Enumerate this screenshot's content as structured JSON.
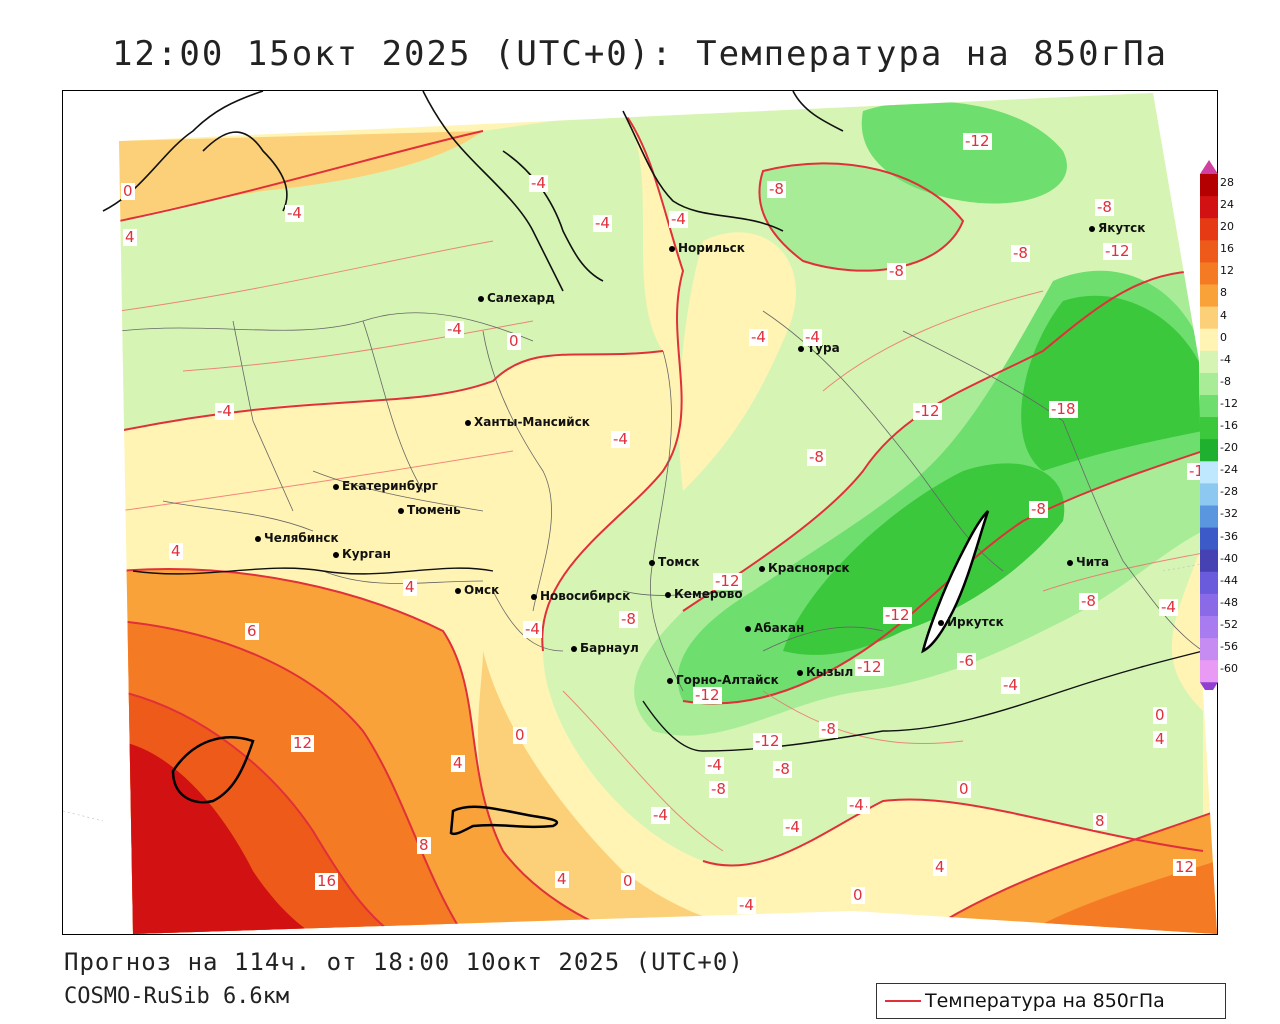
{
  "title": "12:00 15окт 2025 (UTC+0): Температура на 850гПа",
  "forecast_line": "Прогноз на 114ч. от 18:00 10окт 2025 (UTC+0)",
  "model_line": "COSMO-RuSib 6.6км",
  "legend": {
    "label": "Температура на 850гПа",
    "line_color": "#e0303a"
  },
  "colorbar": {
    "ticks": [
      "28",
      "24",
      "20",
      "16",
      "12",
      "8",
      "4",
      "0",
      "-4",
      "-8",
      "-12",
      "-16",
      "-20",
      "-24",
      "-28",
      "-32",
      "-36",
      "-40",
      "-44",
      "-48",
      "-52",
      "-56",
      "-60"
    ],
    "colors": [
      "#b40000",
      "#d21212",
      "#e63a14",
      "#ee5a1a",
      "#f57a24",
      "#f9a23a",
      "#fcd078",
      "#fff4b4",
      "#d6f5b4",
      "#a8ec98",
      "#6ede6e",
      "#3cc83c",
      "#20b030",
      "#bfe8ff",
      "#8cc8f0",
      "#5a96e0",
      "#3c5ac8",
      "#4642b4",
      "#6a5adc",
      "#8a6ae6",
      "#a87cf0",
      "#c68cf2",
      "#e89af4"
    ],
    "arrow_top_color": "#d040a0",
    "arrow_bottom_color": "#9040d0"
  },
  "cities": [
    {
      "name": "Норильск"
    },
    {
      "name": "Салехард"
    },
    {
      "name": "Тура"
    },
    {
      "name": "Якутск"
    },
    {
      "name": "Ханты-Мансийск"
    },
    {
      "name": "Екатеринбург"
    },
    {
      "name": "Тюмень"
    },
    {
      "name": "Челябинск"
    },
    {
      "name": "Курган"
    },
    {
      "name": "Омск"
    },
    {
      "name": "Томск"
    },
    {
      "name": "Красноярск"
    },
    {
      "name": "Кемерово"
    },
    {
      "name": "Новосибирск"
    },
    {
      "name": "Абакан"
    },
    {
      "name": "Иркутск"
    },
    {
      "name": "Чита"
    },
    {
      "name": "Барнаул"
    },
    {
      "name": "Кызыл"
    },
    {
      "name": "Горно-Алтайск"
    }
  ],
  "contour_labels": [
    "-12",
    "-8",
    "-8",
    "-12",
    "-4",
    "-4",
    "-4",
    "-8",
    "-8",
    "-4",
    "0",
    "-4",
    "-4",
    "-4",
    "-12",
    "-18",
    "-4",
    "-8",
    "-12",
    "-1",
    "-8",
    "-12",
    "-8",
    "-8",
    "-12",
    "-6",
    "4",
    "4",
    "-4",
    "6",
    "4",
    "0",
    "-4",
    "-12",
    "-8",
    "-4",
    "-4",
    "-12",
    "-8",
    "0",
    "-4",
    "4",
    "0",
    "-4",
    "12",
    "4",
    "0",
    "-4",
    "-8",
    "-4",
    "8",
    "16",
    "4",
    "0",
    "-4",
    "0",
    "4",
    "8",
    "12",
    "-4"
  ]
}
